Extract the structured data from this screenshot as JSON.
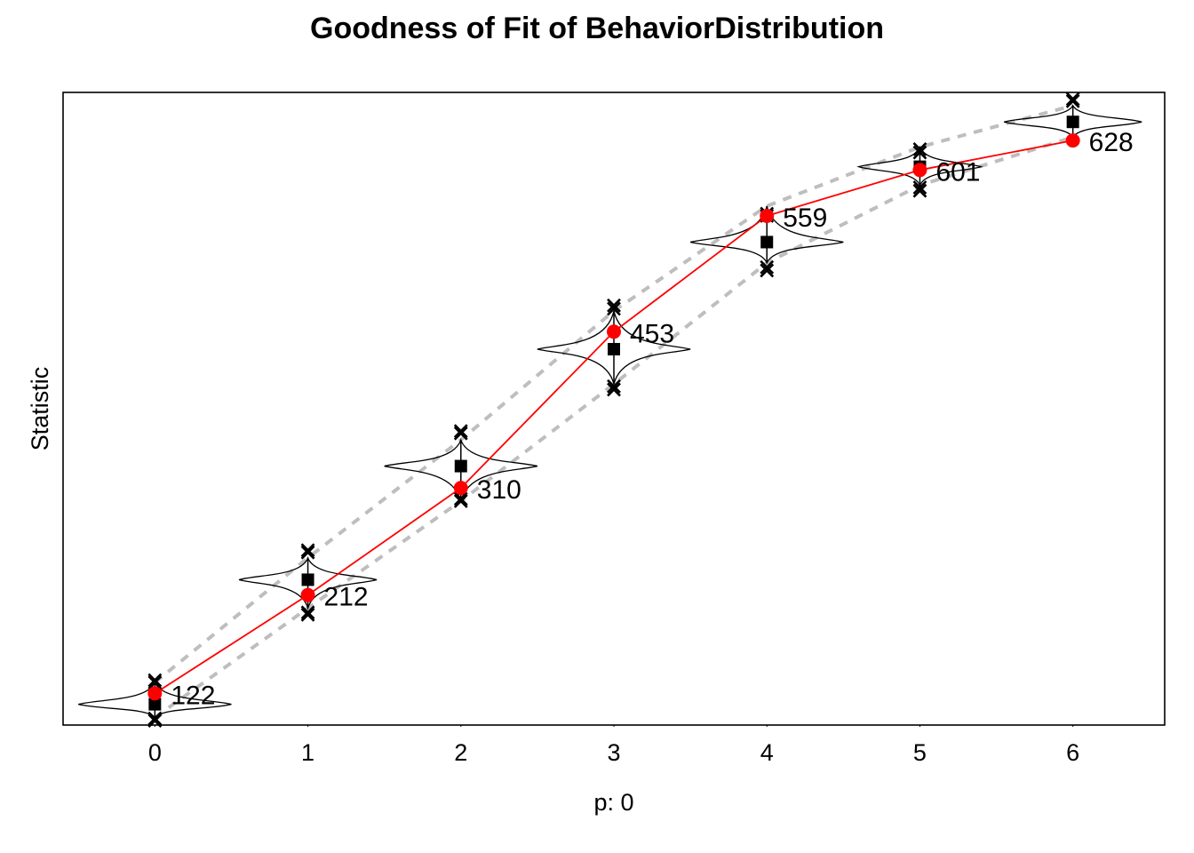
{
  "chart_data": {
    "type": "line",
    "title": "Goodness of Fit of BehaviorDistribution",
    "xlabel": "p: 0",
    "ylabel": "Statistic",
    "x": [
      0,
      1,
      2,
      3,
      4,
      5,
      6
    ],
    "observed": {
      "values": [
        122,
        212,
        310,
        453,
        559,
        601,
        628
      ],
      "labels": [
        "122",
        "212",
        "310",
        "453",
        "559",
        "601",
        "628"
      ],
      "color": "#ff0000"
    },
    "simulated_median": [
      112,
      226,
      330,
      437,
      535,
      604,
      645
    ],
    "simulated_band_upper": [
      132,
      246,
      354,
      472,
      568,
      622,
      660
    ],
    "simulated_band_lower": [
      100,
      200,
      298,
      405,
      516,
      587,
      631
    ],
    "violin_spread": [
      0.5,
      0.45,
      0.5,
      0.5,
      0.5,
      0.4,
      0.45
    ],
    "outliers": [
      [
        97,
        99,
        132,
        134
      ],
      [
        194,
        196,
        251,
        253
      ],
      [
        298,
        300,
        360,
        362
      ],
      [
        400,
        403,
        474,
        477
      ],
      [
        509,
        512,
        559,
        561
      ],
      [
        582,
        585,
        617,
        620
      ],
      [
        664,
        666
      ]
    ],
    "band_color": "#bebebe",
    "marker_color": "#000000",
    "xlim": [
      -0.6,
      6.6
    ],
    "ylim": [
      93,
      672
    ],
    "grid": false,
    "legend": "none"
  }
}
